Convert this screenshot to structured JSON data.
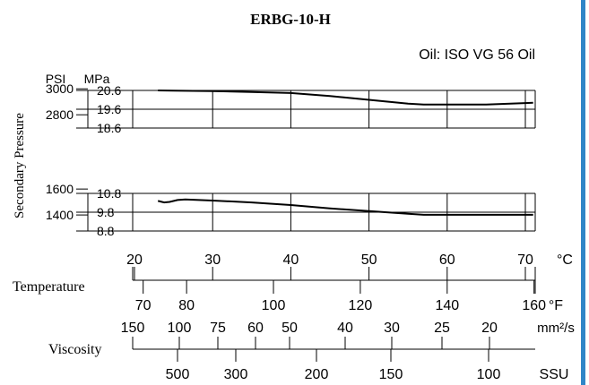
{
  "accent_color": "#2f86c8",
  "chart_data": {
    "type": "line",
    "title": "ERBG-10-H",
    "oil_note": "Oil: ISO VG 56 Oil",
    "ylabel": "Secondary Pressure",
    "grid": true,
    "temperature_axis": {
      "label": "Temperature",
      "celsius_unit": "°C",
      "celsius_ticks": [
        20,
        30,
        40,
        50,
        60,
        70
      ],
      "fahrenheit_unit": "°F",
      "fahrenheit_ticks": [
        70,
        80,
        100,
        120,
        140,
        160
      ]
    },
    "viscosity_axis": {
      "label": "Viscosity",
      "cst_unit": "mm²/s",
      "cst_ticks": [
        150,
        100,
        75,
        60,
        50,
        40,
        30,
        25,
        20
      ],
      "ssu_unit": "SSU",
      "ssu_ticks": [
        500,
        300,
        200,
        150,
        100
      ]
    },
    "pressure_units": {
      "psi": "PSI",
      "mpa": "MPa"
    },
    "upper_panel": {
      "psi_ticks": [
        3000,
        2800
      ],
      "mpa_ticks": [
        "20.6",
        "19.6",
        "18.6"
      ],
      "ylim_mpa": [
        18.6,
        20.6
      ],
      "series": [
        {
          "x": [
            23,
            25,
            30,
            35,
            40,
            45,
            50,
            55,
            57,
            60,
            65,
            70,
            71
          ],
          "y": [
            20.6,
            20.59,
            20.56,
            20.52,
            20.46,
            20.3,
            20.1,
            19.9,
            19.85,
            19.85,
            19.85,
            19.93,
            19.95
          ]
        }
      ]
    },
    "lower_panel": {
      "psi_ticks": [
        1600,
        1400
      ],
      "mpa_ticks": [
        "10.8",
        "9.8",
        "8.8"
      ],
      "ylim_mpa": [
        8.8,
        10.8
      ],
      "series": [
        {
          "x": [
            23,
            23.8,
            24.5,
            25.5,
            26.5,
            30,
            35,
            40,
            45,
            50,
            55,
            57,
            60,
            65,
            70,
            71
          ],
          "y": [
            10.4,
            10.32,
            10.35,
            10.45,
            10.48,
            10.42,
            10.32,
            10.18,
            10.0,
            9.86,
            9.72,
            9.66,
            9.66,
            9.66,
            9.66,
            9.66
          ]
        }
      ]
    }
  }
}
